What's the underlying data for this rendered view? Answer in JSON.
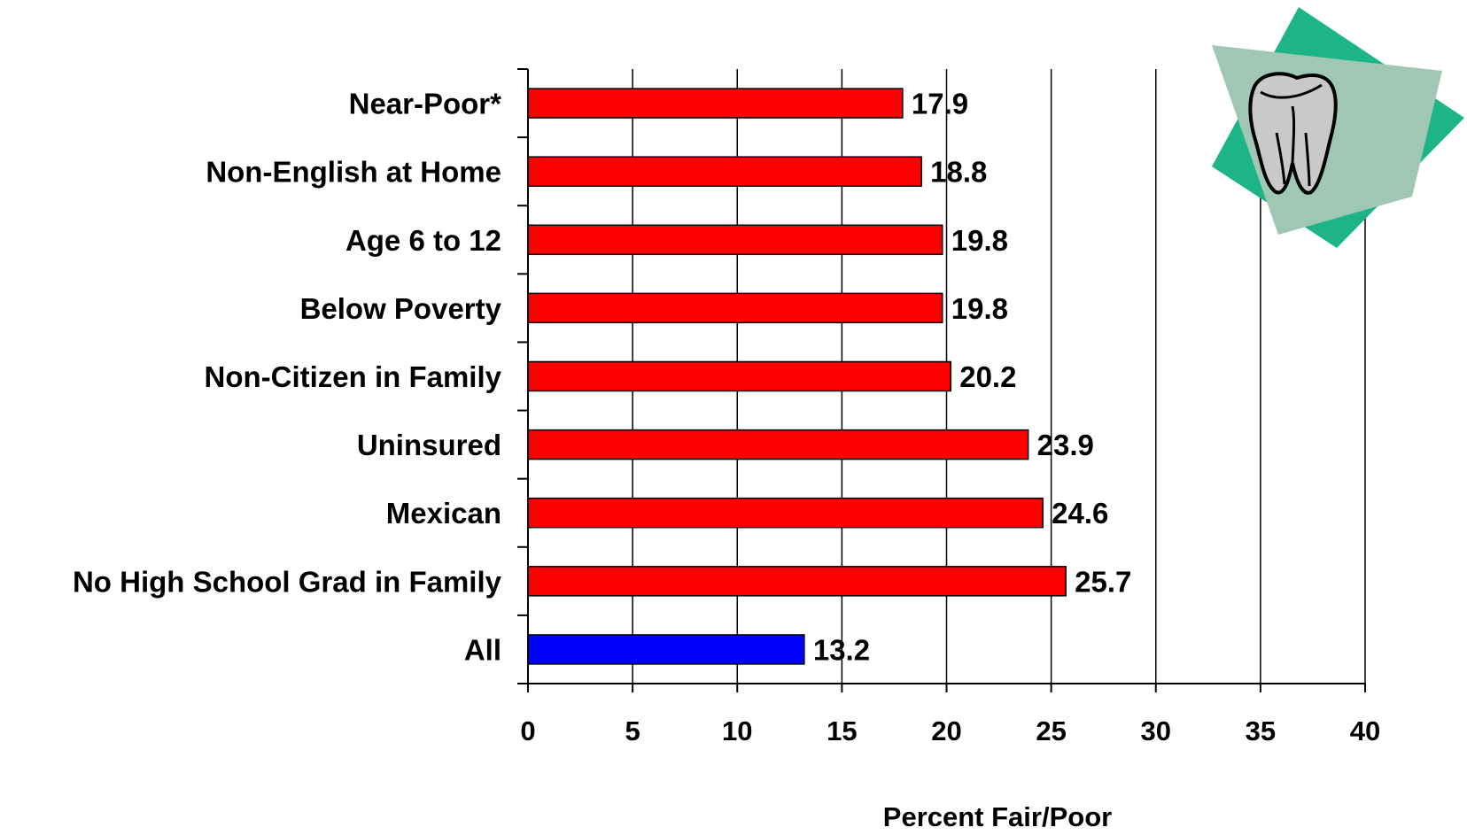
{
  "chart_data": {
    "type": "bar",
    "orientation": "horizontal",
    "categories": [
      "Near-Poor*",
      "Non-English at Home",
      "Age 6 to 12",
      "Below Poverty",
      "Non-Citizen in Family",
      "Uninsured",
      "Mexican",
      "No High School Grad in Family",
      "All"
    ],
    "values": [
      17.9,
      18.8,
      19.8,
      19.8,
      20.2,
      23.9,
      24.6,
      25.7,
      13.2
    ],
    "value_labels": [
      "17.9",
      "18.8",
      "19.8",
      "19.8",
      "20.2",
      "23.9",
      "24.6",
      "25.7",
      "13.2"
    ],
    "bar_colors": [
      "#ff0000",
      "#ff0000",
      "#ff0000",
      "#ff0000",
      "#ff0000",
      "#ff0000",
      "#ff0000",
      "#ff0000",
      "#0000ff"
    ],
    "xlabel": "Percent Fair/Poor",
    "xlim": [
      0,
      40
    ],
    "xticks": [
      0,
      5,
      10,
      15,
      20,
      25,
      30,
      35,
      40
    ],
    "xtick_labels": [
      "0",
      "5",
      "10",
      "15",
      "20",
      "25",
      "30",
      "35",
      "40"
    ],
    "grid": "vertical",
    "legend": "none"
  },
  "decoration": {
    "icon": "tooth-icon",
    "colors": {
      "diamond": "#1db487",
      "card": "#9fc7b4",
      "tooth": "#c9c9c9"
    }
  }
}
